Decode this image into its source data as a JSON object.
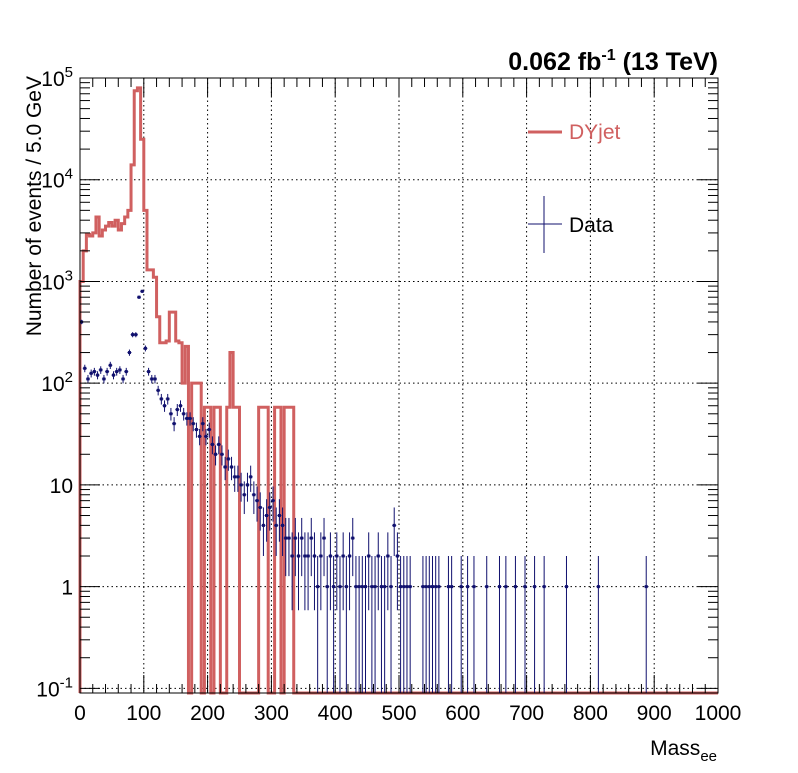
{
  "chart_data": {
    "type": "histogram",
    "lumi_label": {
      "value": "0.062",
      "unit": "fb",
      "exponent": "-1",
      "energy": "(13 TeV)"
    },
    "xlabel": {
      "base": "Mass",
      "sub": "ee"
    },
    "ylabel": "Number of events / 5.0 GeV",
    "xlim": [
      0,
      1000
    ],
    "ylim": [
      0.09,
      100000
    ],
    "yscale": "log",
    "grid": true,
    "bin_width": 5,
    "x_ticks": [
      "0",
      "100",
      "200",
      "300",
      "400",
      "500",
      "600",
      "700",
      "800",
      "900",
      "1000"
    ],
    "y_ticks": [
      {
        "value": 0.1,
        "base": "10",
        "exp": "-1"
      },
      {
        "value": 1,
        "base": "1",
        "exp": ""
      },
      {
        "value": 10,
        "base": "10",
        "exp": ""
      },
      {
        "value": 100,
        "base": "10",
        "exp": "2"
      },
      {
        "value": 1000,
        "base": "10",
        "exp": "3"
      },
      {
        "value": 10000,
        "base": "10",
        "exp": "4"
      },
      {
        "value": 100000,
        "base": "10",
        "exp": "5"
      }
    ],
    "legend": {
      "position": "top-right",
      "entries": [
        {
          "label": "DYjet",
          "style": "line"
        },
        {
          "label": "Data",
          "style": "errorbar"
        }
      ]
    },
    "colors": {
      "mc": "#d06060",
      "data": "#10106e"
    },
    "series": [
      {
        "name": "DYjet",
        "style": "step",
        "bins": [
          [
            0,
            1000
          ],
          [
            5,
            2000
          ],
          [
            10,
            2900
          ],
          [
            15,
            2800
          ],
          [
            20,
            3000
          ],
          [
            25,
            4300
          ],
          [
            30,
            2800
          ],
          [
            35,
            3200
          ],
          [
            40,
            3500
          ],
          [
            45,
            3800
          ],
          [
            50,
            3500
          ],
          [
            55,
            4000
          ],
          [
            60,
            3200
          ],
          [
            65,
            3700
          ],
          [
            70,
            4300
          ],
          [
            75,
            5000
          ],
          [
            80,
            14000
          ],
          [
            85,
            75000
          ],
          [
            90,
            80000
          ],
          [
            95,
            25000
          ],
          [
            100,
            5000
          ],
          [
            105,
            1300
          ],
          [
            110,
            1300
          ],
          [
            115,
            1100
          ],
          [
            120,
            450
          ],
          [
            125,
            250
          ],
          [
            130,
            250
          ],
          [
            135,
            260
          ],
          [
            140,
            500
          ],
          [
            145,
            500
          ],
          [
            150,
            260
          ],
          [
            155,
            250
          ],
          [
            160,
            100
          ],
          [
            165,
            230
          ],
          [
            170,
            0.09
          ],
          [
            175,
            100
          ],
          [
            180,
            100
          ],
          [
            185,
            100
          ],
          [
            190,
            0.09
          ],
          [
            195,
            58
          ],
          [
            200,
            58
          ],
          [
            205,
            0.09
          ],
          [
            210,
            58
          ],
          [
            215,
            58
          ],
          [
            220,
            0.09
          ],
          [
            225,
            0.09
          ],
          [
            230,
            58
          ],
          [
            235,
            200
          ],
          [
            240,
            58
          ],
          [
            245,
            58
          ],
          [
            250,
            0.09
          ],
          [
            255,
            0.09
          ],
          [
            260,
            0.09
          ],
          [
            265,
            0.09
          ],
          [
            270,
            0.09
          ],
          [
            275,
            0.09
          ],
          [
            280,
            58
          ],
          [
            285,
            58
          ],
          [
            290,
            58
          ],
          [
            295,
            0.09
          ],
          [
            300,
            0.09
          ],
          [
            305,
            58
          ],
          [
            310,
            58
          ],
          [
            315,
            0.09
          ],
          [
            320,
            58
          ],
          [
            325,
            58
          ],
          [
            330,
            58
          ]
        ]
      },
      {
        "name": "Data",
        "style": "errorbar",
        "points": [
          [
            2.5,
            400
          ],
          [
            7.5,
            140
          ],
          [
            12.5,
            110
          ],
          [
            17.5,
            125
          ],
          [
            22.5,
            130
          ],
          [
            27.5,
            120
          ],
          [
            32.5,
            135
          ],
          [
            37.5,
            110
          ],
          [
            42.5,
            130
          ],
          [
            47.5,
            150
          ],
          [
            52.5,
            120
          ],
          [
            57.5,
            130
          ],
          [
            62.5,
            135
          ],
          [
            67.5,
            110
          ],
          [
            72.5,
            130
          ],
          [
            77.5,
            200
          ],
          [
            82.5,
            300
          ],
          [
            87.5,
            300
          ],
          [
            92.5,
            700
          ],
          [
            97.5,
            800
          ],
          [
            102.5,
            220
          ],
          [
            107.5,
            130
          ],
          [
            112.5,
            110
          ],
          [
            117.5,
            110
          ],
          [
            122.5,
            85
          ],
          [
            127.5,
            70
          ],
          [
            132.5,
            60
          ],
          [
            137.5,
            70
          ],
          [
            142.5,
            50
          ],
          [
            147.5,
            40
          ],
          [
            152.5,
            55
          ],
          [
            157.5,
            60
          ],
          [
            162.5,
            50
          ],
          [
            167.5,
            45
          ],
          [
            172.5,
            45
          ],
          [
            177.5,
            40
          ],
          [
            182.5,
            35
          ],
          [
            187.5,
            30
          ],
          [
            192.5,
            40
          ],
          [
            197.5,
            30
          ],
          [
            202.5,
            35
          ],
          [
            207.5,
            25
          ],
          [
            212.5,
            20
          ],
          [
            217.5,
            25
          ],
          [
            222.5,
            20
          ],
          [
            227.5,
            15
          ],
          [
            232.5,
            18
          ],
          [
            237.5,
            15
          ],
          [
            242.5,
            12
          ],
          [
            247.5,
            12
          ],
          [
            252.5,
            10
          ],
          [
            257.5,
            8
          ],
          [
            262.5,
            10
          ],
          [
            267.5,
            12
          ],
          [
            272.5,
            8
          ],
          [
            277.5,
            7
          ],
          [
            282.5,
            6
          ],
          [
            287.5,
            4
          ],
          [
            292.5,
            5
          ],
          [
            297.5,
            6
          ],
          [
            302.5,
            7
          ],
          [
            307.5,
            4
          ],
          [
            312.5,
            5
          ],
          [
            317.5,
            4
          ],
          [
            322.5,
            3
          ],
          [
            327.5,
            3
          ],
          [
            332.5,
            2
          ],
          [
            337.5,
            3
          ],
          [
            342.5,
            2
          ],
          [
            347.5,
            3
          ],
          [
            352.5,
            2
          ],
          [
            357.5,
            2
          ],
          [
            362.5,
            3
          ],
          [
            367.5,
            2
          ],
          [
            372.5,
            1
          ],
          [
            377.5,
            2
          ],
          [
            382.5,
            3
          ],
          [
            387.5,
            1
          ],
          [
            392.5,
            2
          ],
          [
            397.5,
            1
          ],
          [
            402.5,
            2
          ],
          [
            407.5,
            1
          ],
          [
            412.5,
            2
          ],
          [
            417.5,
            1
          ],
          [
            422.5,
            2
          ],
          [
            427.5,
            3
          ],
          [
            432.5,
            1
          ],
          [
            437.5,
            1
          ],
          [
            442.5,
            1
          ],
          [
            447.5,
            1
          ],
          [
            452.5,
            2
          ],
          [
            457.5,
            1
          ],
          [
            462.5,
            1
          ],
          [
            467.5,
            2
          ],
          [
            472.5,
            1
          ],
          [
            477.5,
            1
          ],
          [
            482.5,
            2
          ],
          [
            487.5,
            1
          ],
          [
            492.5,
            4
          ],
          [
            497.5,
            2
          ],
          [
            502.5,
            1
          ],
          [
            507.5,
            1
          ],
          [
            512.5,
            1
          ],
          [
            517.5,
            1
          ],
          [
            537.5,
            1
          ],
          [
            542.5,
            1
          ],
          [
            547.5,
            1
          ],
          [
            552.5,
            1
          ],
          [
            557.5,
            1
          ],
          [
            562.5,
            1
          ],
          [
            577.5,
            1
          ],
          [
            582.5,
            1
          ],
          [
            597.5,
            1
          ],
          [
            607.5,
            1
          ],
          [
            617.5,
            1
          ],
          [
            637.5,
            1
          ],
          [
            657.5,
            1
          ],
          [
            667.5,
            1
          ],
          [
            682.5,
            1
          ],
          [
            697.5,
            1
          ],
          [
            712.5,
            1
          ],
          [
            727.5,
            1
          ],
          [
            762.5,
            1
          ],
          [
            812.5,
            1
          ],
          [
            887.5,
            1
          ]
        ]
      }
    ]
  }
}
